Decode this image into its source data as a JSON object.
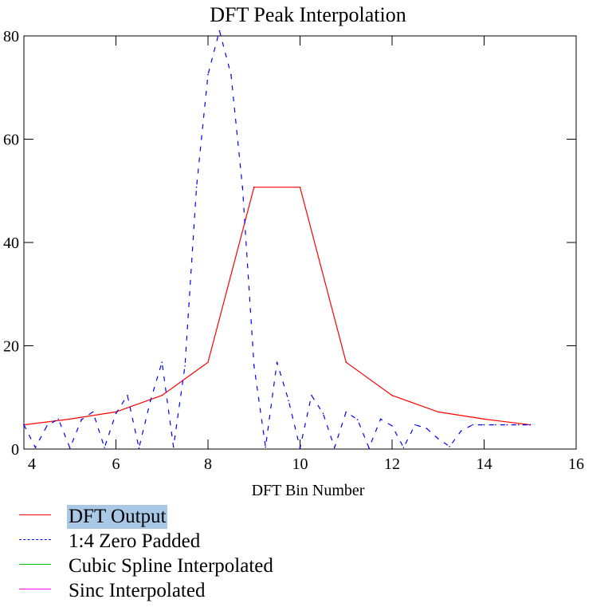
{
  "chart_data": {
    "type": "line",
    "title": "DFT Peak Interpolation",
    "xlabel": "DFT Bin Number",
    "ylabel": "",
    "xlim": [
      4,
      16
    ],
    "ylim": [
      0,
      80
    ],
    "x_ticks": [
      "4",
      "6",
      "8",
      "10",
      "12",
      "14",
      "16"
    ],
    "y_ticks": [
      "0",
      "20",
      "40",
      "60",
      "80"
    ],
    "grid": false,
    "legend_position": "bottom-left",
    "series": [
      {
        "name": "DFT Output",
        "color": "#ff0000",
        "style": "solid",
        "x": [
          4,
          5,
          6,
          7,
          8,
          9,
          10,
          11,
          12,
          13,
          14,
          15
        ],
        "y": [
          4.7,
          5.8,
          7.2,
          10.4,
          16.8,
          50.7,
          50.7,
          16.8,
          10.4,
          7.2,
          5.8,
          4.7
        ]
      },
      {
        "name": "1:4 Zero Padded",
        "color": "#0000ff",
        "style": "dashed",
        "x": [
          4.0,
          4.25,
          4.5,
          4.75,
          5.0,
          5.25,
          5.5,
          5.75,
          6.0,
          6.25,
          6.5,
          6.75,
          7.0,
          7.25,
          7.5,
          7.75,
          8.0,
          8.25,
          8.5,
          8.75,
          9.0,
          9.25,
          9.5,
          9.75,
          10.0,
          10.25,
          10.5,
          10.75,
          11.0,
          11.25,
          11.5,
          11.75,
          12.0,
          12.25,
          12.5,
          12.75,
          13.0,
          13.25,
          13.5,
          13.75,
          14.0,
          14.25,
          14.5,
          14.75,
          15.0
        ],
        "y": [
          4.7,
          0.3,
          4.5,
          5.8,
          0.2,
          5.7,
          7.2,
          0.3,
          6.9,
          10.4,
          0.2,
          9.4,
          16.8,
          0.4,
          16.1,
          50.7,
          72.5,
          81.0,
          72.5,
          50.7,
          16.1,
          0.4,
          16.8,
          9.4,
          0.2,
          10.4,
          6.9,
          0.3,
          7.2,
          5.7,
          0.2,
          5.8,
          4.5,
          0.3,
          4.7,
          4.0,
          2.0,
          0.5,
          3.5,
          4.7,
          4.7,
          4.7,
          4.7,
          4.7,
          4.7
        ]
      },
      {
        "name": "Cubic Spline Interpolated",
        "color": "#00cc00",
        "style": "solid",
        "x": [],
        "y": []
      },
      {
        "name": "Sinc Interpolated",
        "color": "#ff00ff",
        "style": "solid",
        "x": [],
        "y": []
      }
    ]
  },
  "legend": {
    "items": [
      {
        "label": "DFT Output",
        "color": "#ff0000",
        "dash": "solid",
        "selected": true
      },
      {
        "label": "1:4 Zero Padded",
        "color": "#0000ff",
        "dash": "dashed",
        "selected": false
      },
      {
        "label": "Cubic Spline Interpolated",
        "color": "#00cc00",
        "dash": "solid",
        "selected": false
      },
      {
        "label": "Sinc Interpolated",
        "color": "#ff00ff",
        "dash": "solid",
        "selected": false
      }
    ]
  }
}
